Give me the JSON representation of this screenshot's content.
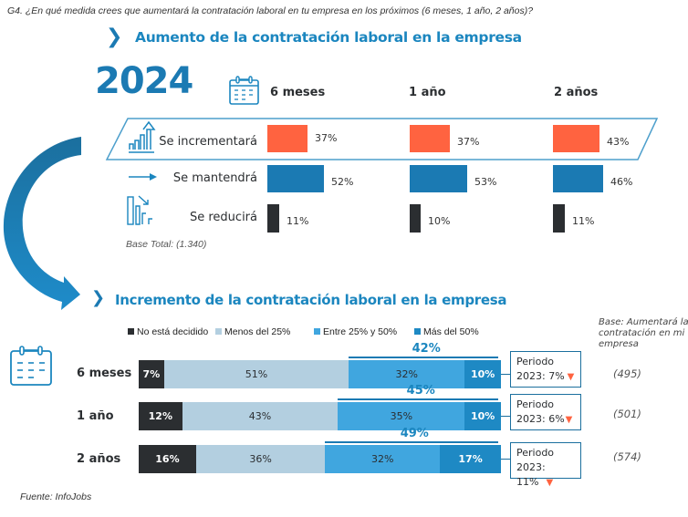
{
  "question": "G4. ¿En qué medida crees que aumentará la contratación laboral en tu empresa en los próximos (6 meses, 1 año, 2 años)?",
  "source": "Fuente: InfoJobs",
  "colors": {
    "increase": "#ff6340",
    "maintain": "#1b7ab3",
    "reduce": "#2b2e31",
    "undecided": "#2b2e31",
    "less25": "#b3cfe0",
    "between25_50": "#40a6df",
    "more50": "#1e89c4",
    "accent": "#1b86bf"
  },
  "chart_data": [
    {
      "type": "bar",
      "title": "Aumento de la contratación laboral en la empresa",
      "year": "2024",
      "categories": [
        "6 meses",
        "1 año",
        "2 años"
      ],
      "series": [
        {
          "name": "Se incrementará",
          "values": [
            37,
            37,
            43
          ],
          "labels": [
            "37%",
            "37%",
            "43%"
          ]
        },
        {
          "name": "Se mantendrá",
          "values": [
            52,
            53,
            46
          ],
          "labels": [
            "52%",
            "53%",
            "46%"
          ]
        },
        {
          "name": "Se reducirá",
          "values": [
            11,
            10,
            11
          ],
          "labels": [
            "11%",
            "10%",
            "11%"
          ]
        }
      ],
      "unit": "%",
      "base_note": "Base Total: (1.340)"
    },
    {
      "type": "bar",
      "stacked": true,
      "orientation": "horizontal",
      "title": "Incremento de la contratación laboral en la empresa",
      "categories": [
        "6 meses",
        "1 año",
        "2 años"
      ],
      "legend": [
        "No está decidido",
        "Menos del 25%",
        "Entre 25% y 50%",
        "Más del 50%"
      ],
      "legend_position": "top",
      "series": [
        {
          "name": "No está decidido",
          "values": [
            7,
            12,
            16
          ],
          "labels": [
            "7%",
            "12%",
            "16%"
          ]
        },
        {
          "name": "Menos del 25%",
          "values": [
            51,
            43,
            36
          ],
          "labels": [
            "51%",
            "43%",
            "36%"
          ]
        },
        {
          "name": "Entre 25% y 50%",
          "values": [
            32,
            35,
            32
          ],
          "labels": [
            "32%",
            "35%",
            "32%"
          ]
        },
        {
          "name": "Más del 50%",
          "values": [
            10,
            10,
            17
          ],
          "labels": [
            "10%",
            "10%",
            "17%"
          ]
        }
      ],
      "totals_over_25": [
        "42%",
        "45%",
        "49%"
      ],
      "period_2023": [
        {
          "line1": "Periodo",
          "line2": "2023: 7%"
        },
        {
          "line1": "Periodo",
          "line2": "2023: 6%"
        },
        {
          "line1": "Periodo",
          "line2": "2023: 11%"
        }
      ],
      "bases": [
        "(495)",
        "(501)",
        "(574)"
      ],
      "base_note": "Base: Aumentará la contratación en mi empresa"
    }
  ]
}
